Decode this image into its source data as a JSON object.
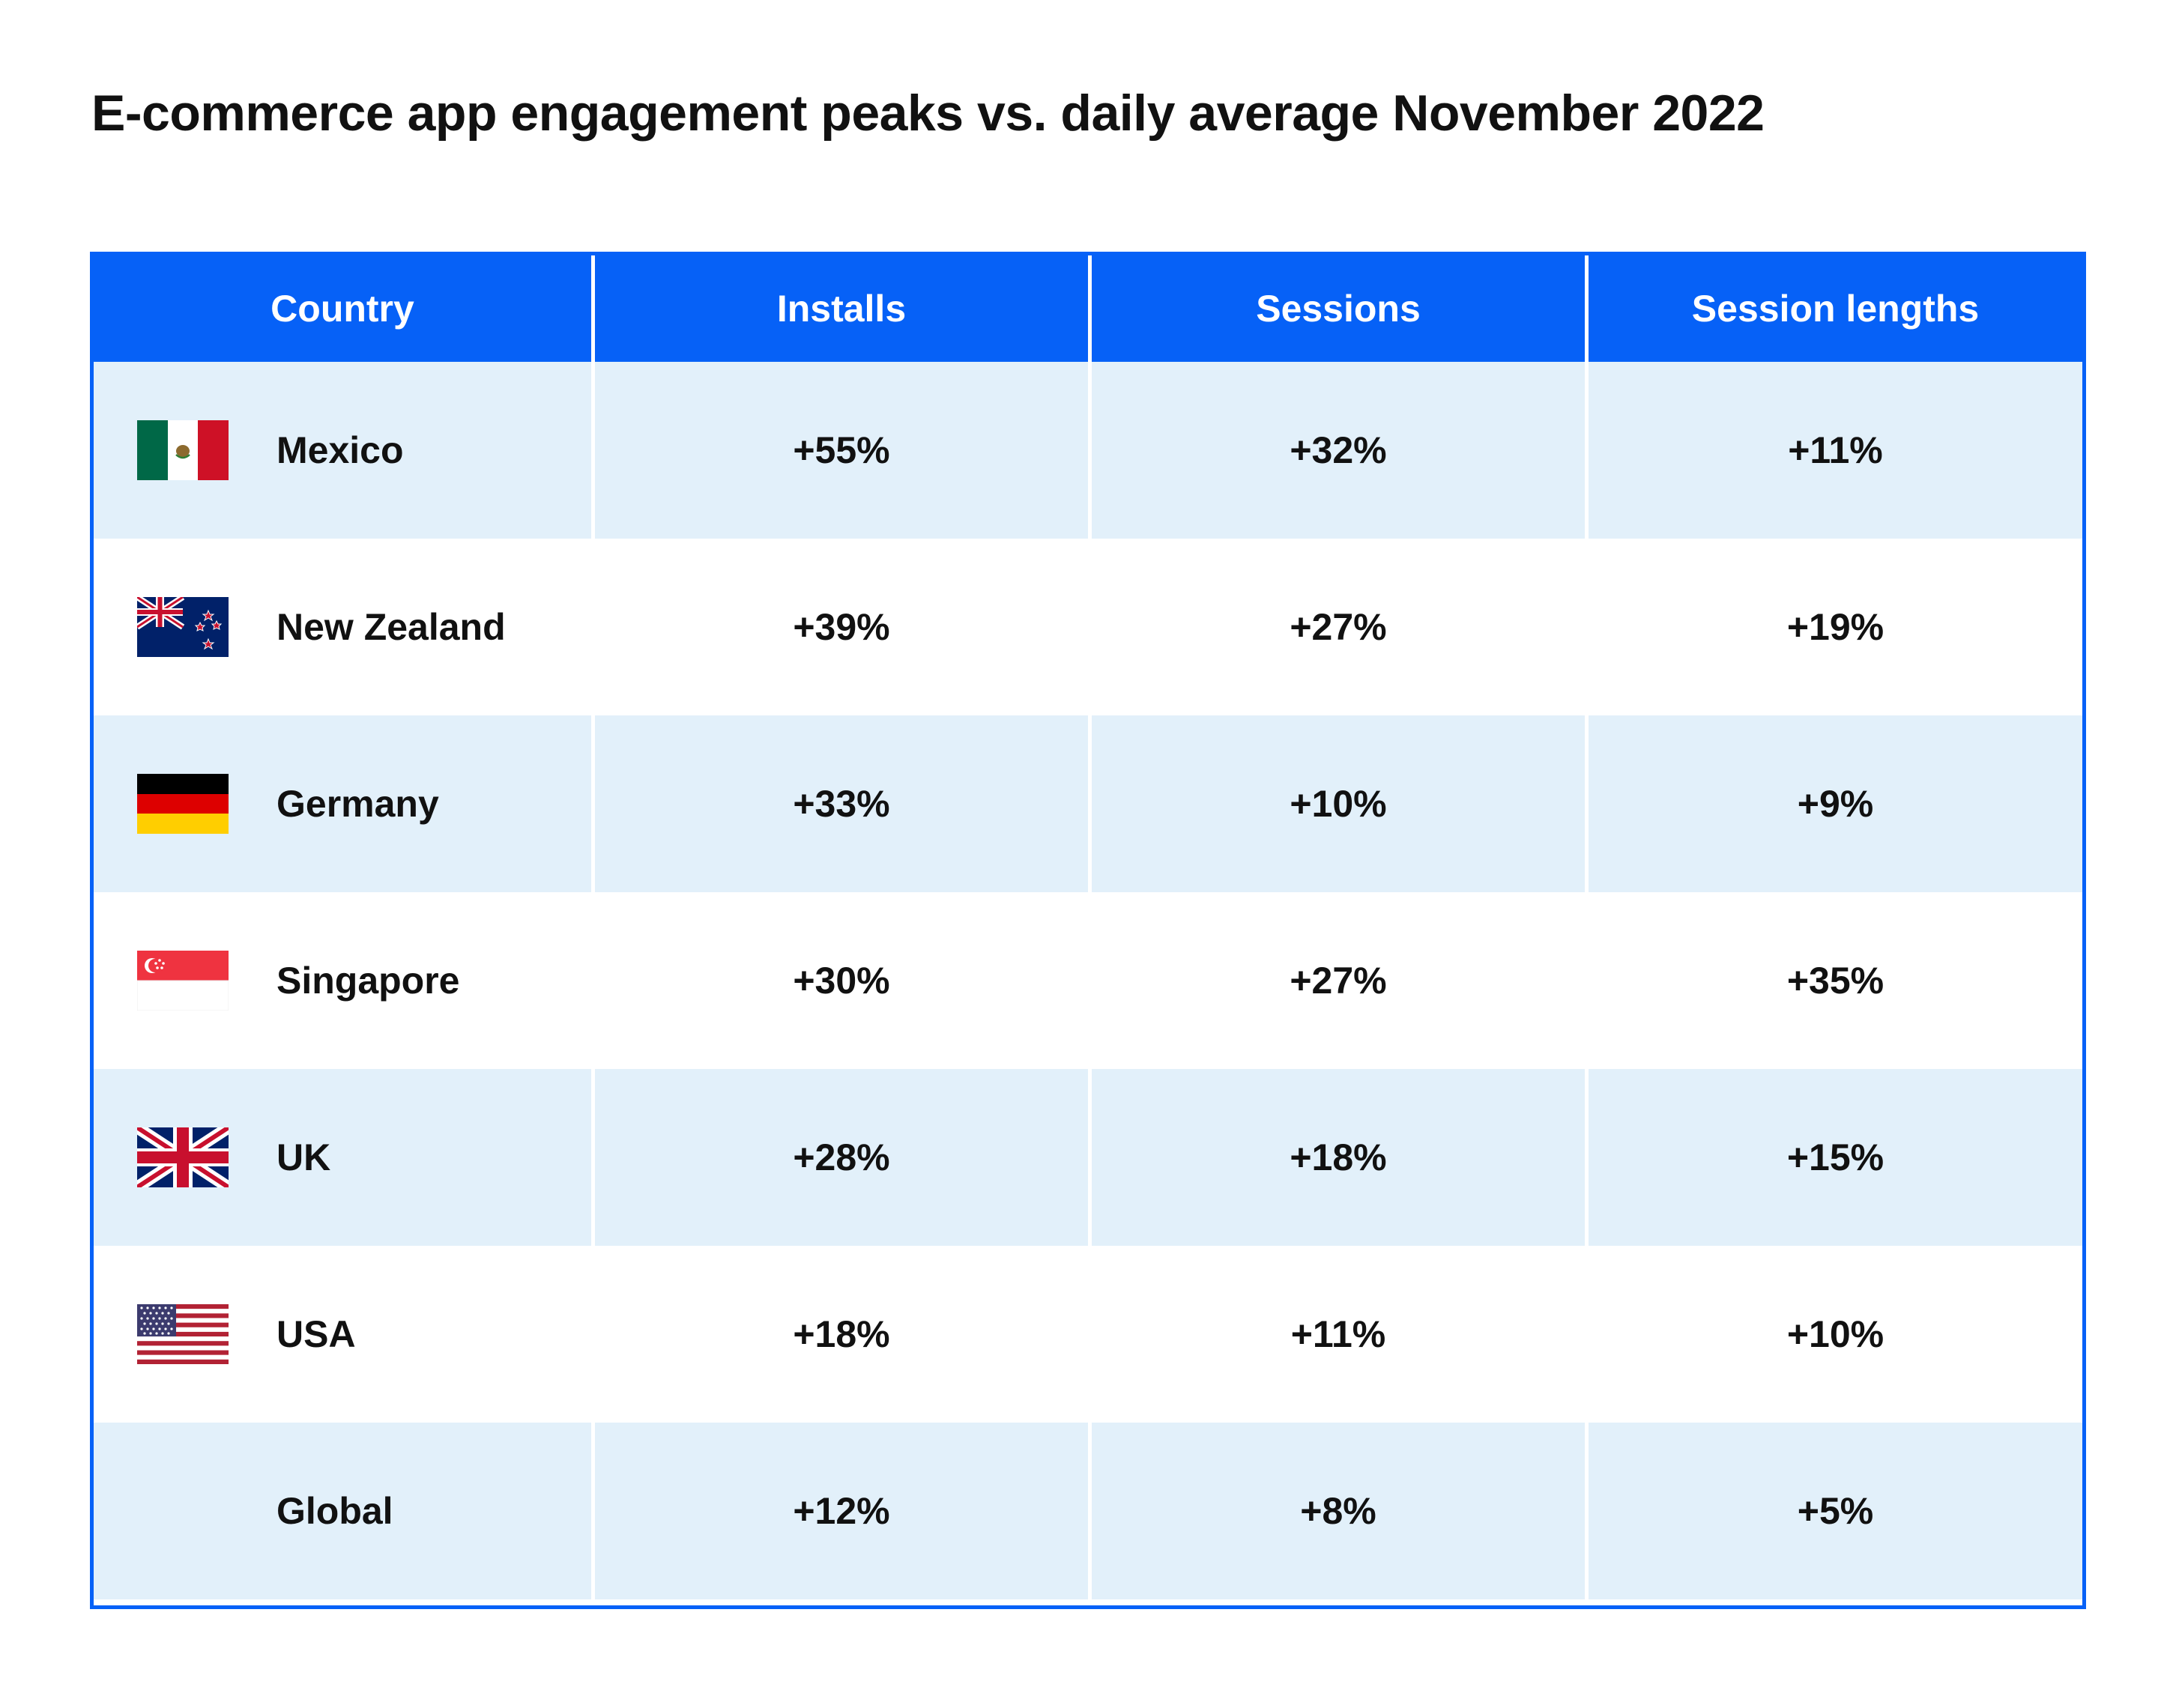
{
  "title": "E-commerce app engagement peaks vs. daily average November 2022",
  "colors": {
    "header_bg": "#0661F7",
    "alt_row_bg": "#E2F0FA",
    "text": "#111111"
  },
  "chart_data": {
    "type": "table",
    "title": "E-commerce app engagement peaks vs. daily average November 2022",
    "columns": [
      "Country",
      "Installs",
      "Sessions",
      "Session lengths"
    ],
    "rows": [
      {
        "country": "Mexico",
        "flag": "mexico-flag-icon",
        "installs": "+55%",
        "sessions": "+32%",
        "session_lengths": "+11%"
      },
      {
        "country": "New Zealand",
        "flag": "new-zealand-flag-icon",
        "installs": "+39%",
        "sessions": "+27%",
        "session_lengths": "+19%"
      },
      {
        "country": "Germany",
        "flag": "germany-flag-icon",
        "installs": "+33%",
        "sessions": "+10%",
        "session_lengths": "+9%"
      },
      {
        "country": "Singapore",
        "flag": "singapore-flag-icon",
        "installs": "+30%",
        "sessions": "+27%",
        "session_lengths": "+35%"
      },
      {
        "country": "UK",
        "flag": "uk-flag-icon",
        "installs": "+28%",
        "sessions": "+18%",
        "session_lengths": "+15%"
      },
      {
        "country": "USA",
        "flag": "usa-flag-icon",
        "installs": "+18%",
        "sessions": "+11%",
        "session_lengths": "+10%"
      },
      {
        "country": "Global",
        "flag": "",
        "installs": "+12%",
        "sessions": "+8%",
        "session_lengths": "+5%"
      }
    ]
  }
}
